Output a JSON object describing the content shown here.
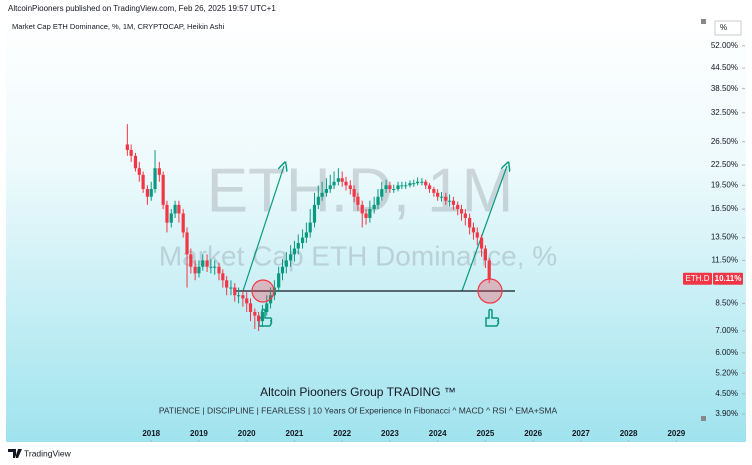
{
  "header": "AltcoinPiooners published on TradingView.com, Feb 26, 2025 19:57 UTC+1",
  "footer": "TradingView",
  "chart_data": {
    "type": "candlestick",
    "title": "Market Cap ETH Dominance, %, 1M, CRYPTOCAP, Heikin Ashi",
    "watermark": "ETH.D, 1M",
    "watermark_subtitle": "Market Cap ETH Dominance, %",
    "scale_unit": "%",
    "annotations": [
      "Altcoin Piooners Group TRADING ™",
      "PATIENCE  |  DISCIPLINE  |  FEARLESS  |  10 Years Of Experience In Fibonacci ^ MACD ^ RSI ^ EMA+SMA"
    ],
    "symbol_tag": "ETH.D",
    "last_value": 10.11,
    "last_value_label": "10.11%",
    "support_level": 9.27,
    "up_color": "#089981",
    "down_color": "#f23645",
    "log_scale": true,
    "xlim": [
      2015,
      2029.6
    ],
    "xticks": [
      2018,
      2019,
      2020,
      2021,
      2022,
      2023,
      2024,
      2025,
      2026,
      2027,
      2028,
      2029
    ],
    "ylim": [
      3.25,
      63.3
    ],
    "yticks": [
      {
        "value": 52,
        "label": "52.00%"
      },
      {
        "value": 44.5,
        "label": "44.50%"
      },
      {
        "value": 38.5,
        "label": "38.50%"
      },
      {
        "value": 32.5,
        "label": "32.50%"
      },
      {
        "value": 26.5,
        "label": "26.50%"
      },
      {
        "value": 22.5,
        "label": "22.50%"
      },
      {
        "value": 19.5,
        "label": "19.50%"
      },
      {
        "value": 16.5,
        "label": "16.50%"
      },
      {
        "value": 13.5,
        "label": "13.50%"
      },
      {
        "value": 11.5,
        "label": "11.50%"
      },
      {
        "value": 8.5,
        "label": "8.50%"
      },
      {
        "value": 7,
        "label": "7.00%"
      },
      {
        "value": 6,
        "label": "6.00%"
      },
      {
        "value": 5.2,
        "label": "5.20%"
      },
      {
        "value": 4.5,
        "label": "4.50%"
      },
      {
        "value": 3.9,
        "label": "3.90%"
      }
    ],
    "x": [
      2017.5,
      2017.58,
      2017.67,
      2017.75,
      2017.83,
      2017.92,
      2018,
      2018.08,
      2018.17,
      2018.25,
      2018.33,
      2018.42,
      2018.5,
      2018.58,
      2018.67,
      2018.75,
      2018.83,
      2018.92,
      2019,
      2019.08,
      2019.17,
      2019.25,
      2019.33,
      2019.42,
      2019.5,
      2019.58,
      2019.67,
      2019.75,
      2019.83,
      2019.92,
      2020,
      2020.08,
      2020.17,
      2020.25,
      2020.33,
      2020.42,
      2020.5,
      2020.58,
      2020.67,
      2020.75,
      2020.83,
      2020.92,
      2021,
      2021.08,
      2021.17,
      2021.25,
      2021.33,
      2021.42,
      2021.5,
      2021.58,
      2021.67,
      2021.75,
      2021.83,
      2021.92,
      2022,
      2022.08,
      2022.17,
      2022.25,
      2022.33,
      2022.42,
      2022.5,
      2022.58,
      2022.67,
      2022.75,
      2022.83,
      2022.92,
      2023,
      2023.08,
      2023.17,
      2023.25,
      2023.33,
      2023.42,
      2023.5,
      2023.58,
      2023.67,
      2023.75,
      2023.83,
      2023.92,
      2024,
      2024.08,
      2024.17,
      2024.25,
      2024.33,
      2024.42,
      2024.5,
      2024.58,
      2024.67,
      2024.75,
      2024.83,
      2024.92,
      2025,
      2025.08
    ],
    "open": [
      26,
      25,
      24,
      22,
      21,
      19,
      18,
      19,
      22,
      21,
      17,
      15,
      16,
      17,
      16,
      14,
      12,
      11,
      10.5,
      11,
      11.5,
      11,
      11,
      11,
      10.5,
      10,
      9.5,
      9.5,
      9,
      9,
      8.8,
      8.5,
      8,
      7.8,
      7.5,
      8,
      8.5,
      9,
      9.5,
      10.5,
      11,
      11.5,
      12,
      12.5,
      13,
      13.5,
      14,
      15,
      17,
      18,
      18.5,
      19,
      19.5,
      20,
      20.5,
      20,
      19.5,
      19,
      18,
      17,
      16,
      15.5,
      16.5,
      17,
      18,
      19,
      19.5,
      19,
      19,
      19.5,
      19.5,
      19.5,
      19.8,
      19.8,
      20,
      20,
      19.5,
      19,
      18.5,
      18,
      18,
      17.5,
      17.5,
      17,
      16.5,
      16,
      15.5,
      14.5,
      14,
      13.5,
      12.5,
      11.5
    ],
    "high": [
      30,
      26,
      24.5,
      23,
      21.5,
      19.5,
      20,
      25,
      23,
      21.5,
      17.5,
      16.5,
      17.5,
      17.5,
      16.5,
      14.5,
      12.5,
      11.5,
      11.5,
      12,
      12,
      11.6,
      11.5,
      11.3,
      10.8,
      10.3,
      10,
      9.8,
      9.5,
      9.3,
      9.2,
      8.8,
      8.2,
      8,
      8.4,
      9,
      9.5,
      10,
      11,
      11.6,
      12.2,
      12.8,
      13.2,
      13.8,
      14.3,
      15,
      16.5,
      18.5,
      19.5,
      20,
      20.5,
      21,
      21.5,
      22,
      21.5,
      20.7,
      20.2,
      19.5,
      18.5,
      17.5,
      16.5,
      17.5,
      18,
      19,
      20,
      20.3,
      20,
      19.6,
      20,
      20,
      20,
      20.2,
      20.3,
      20.6,
      20.5,
      20.3,
      19.8,
      19.3,
      19,
      18.6,
      18.5,
      18.3,
      18,
      17.4,
      17,
      16.5,
      16,
      15,
      14.5,
      13.8,
      12.8,
      11.7
    ],
    "low": [
      24,
      23,
      21.5,
      20,
      18.5,
      17,
      17.5,
      18.5,
      20,
      16.5,
      14,
      14.5,
      15.5,
      15,
      13.5,
      9.5,
      10.5,
      10,
      10.2,
      10.7,
      10.6,
      10.5,
      10.4,
      10,
      9.5,
      9,
      9,
      8.6,
      8.5,
      8.3,
      8,
      7.5,
      7.1,
      7,
      7.2,
      7.8,
      8.2,
      8.7,
      9.2,
      10,
      10.5,
      11,
      11.4,
      12,
      12.5,
      13,
      13.5,
      14.5,
      16.5,
      17.5,
      18,
      18.5,
      19,
      19.5,
      19.3,
      18.8,
      18.3,
      17.3,
      16.3,
      14.5,
      14.8,
      15,
      16,
      16.5,
      17.5,
      18.5,
      18.5,
      18.5,
      18.7,
      19,
      19,
      19.2,
      19.3,
      19.5,
      19.5,
      19,
      18.5,
      18,
      17.5,
      17.4,
      17,
      16.8,
      16.4,
      15.8,
      15.2,
      14.7,
      13.8,
      13.3,
      12.8,
      11.8,
      10.9,
      9.8
    ],
    "close": [
      25,
      24,
      22,
      21,
      19,
      18,
      19,
      22,
      21,
      17,
      15,
      16,
      17,
      16,
      14,
      12,
      11,
      10.5,
      11,
      11.5,
      11,
      11,
      11,
      10.5,
      10,
      9.5,
      9.5,
      9,
      9,
      8.8,
      8.5,
      8,
      7.8,
      7.5,
      8,
      8.5,
      9,
      9.5,
      10.5,
      11,
      11.5,
      12,
      12.5,
      13,
      13.5,
      14,
      15,
      17,
      18,
      18.5,
      19,
      19.5,
      20,
      20.5,
      20,
      19.5,
      19,
      18,
      17,
      16,
      15.5,
      16.5,
      17,
      18,
      19,
      19.5,
      19,
      19,
      19.5,
      19.5,
      19.5,
      19.8,
      19.8,
      20,
      20,
      19.5,
      19,
      18.5,
      18,
      18,
      17.5,
      17.5,
      17,
      16.5,
      16,
      15.5,
      14.5,
      14,
      13.5,
      12.5,
      11.5,
      10.11
    ]
  }
}
